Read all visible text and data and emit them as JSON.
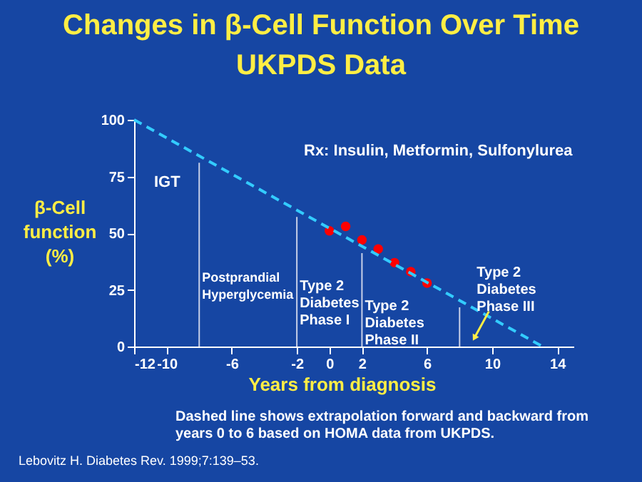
{
  "chart_data": {
    "type": "scatter",
    "title": "Changes in β-Cell Function Over Time",
    "subtitle": "UKPDS Data",
    "xlabel": "Years from diagnosis",
    "ylabel": "β-Cell\nfunction\n(%)",
    "xlim": [
      -12,
      15
    ],
    "xticks": [
      -12,
      -10,
      -6,
      -2,
      0,
      2,
      6,
      10,
      14
    ],
    "ylim": [
      0,
      100
    ],
    "yticks": [
      0,
      25,
      50,
      75,
      100
    ],
    "grid": false,
    "series": [
      {
        "color": "#ff0000",
        "marker": "circle",
        "x": [
          0,
          1,
          2,
          3,
          4,
          5,
          6
        ],
        "values": [
          51,
          53,
          47,
          43,
          37,
          33,
          28
        ]
      },
      {
        "type": "line",
        "color": "#33ccff",
        "line_style": "dashed",
        "x": [
          -12,
          13.1
        ],
        "values": [
          100,
          0
        ]
      }
    ],
    "ref_lines": [
      {
        "axis": "x",
        "value": -8,
        "label": "Postprandial\nHyperglycemia",
        "color": "#c8d0e8"
      },
      {
        "axis": "x",
        "value": -2,
        "label": "Type 2\nDiabetes\nPhase I",
        "color": "#c8d0e8"
      },
      {
        "axis": "x",
        "value": 2,
        "label": "Type 2\nDiabetes\nPhase II",
        "color": "#c8d0e8"
      },
      {
        "axis": "x",
        "value": 8,
        "label": "Type 2\nDiabetes\nPhase III",
        "color": "#c8d0e8"
      }
    ],
    "annotations": [
      "IGT",
      "Rx:  Insulin, Metformin, Sulfonylurea",
      "Dashed line shows extrapolation forward and backward from\nyears 0 to 6 based on HOMA data from UKPDS.",
      "Lebovitz H. Diabetes Rev. 1999;7:139–53."
    ]
  }
}
